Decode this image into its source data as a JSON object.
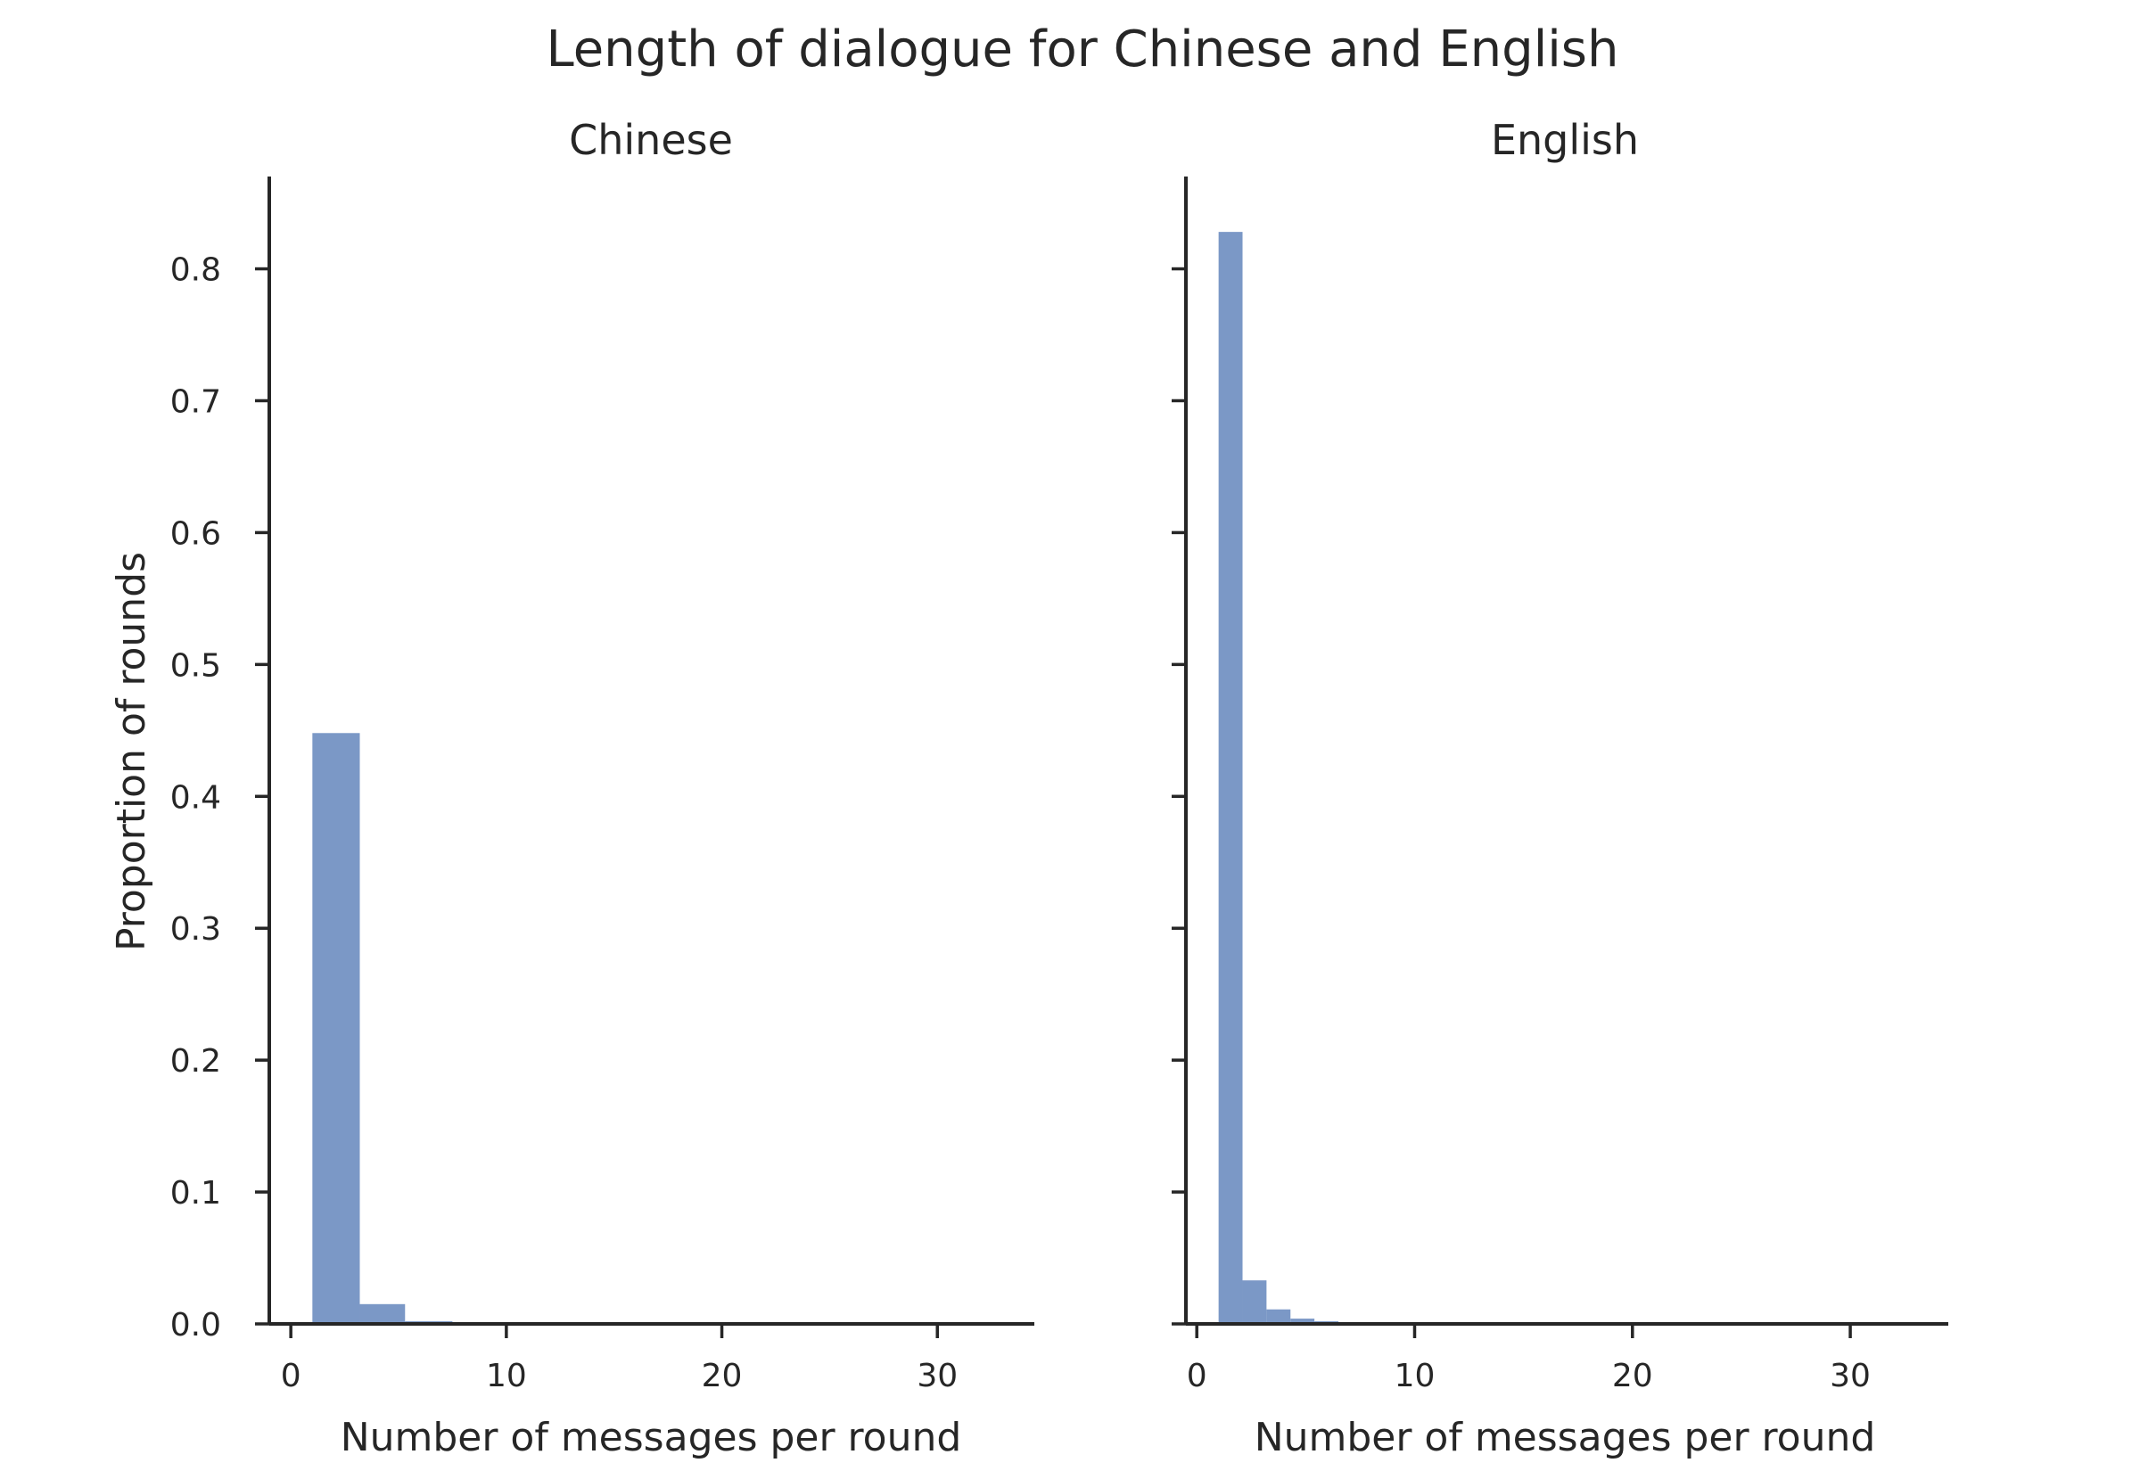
{
  "figure": {
    "title": "Length of dialogue for Chinese and English",
    "bar_color": "#7b98c6",
    "axis_color": "#262626"
  },
  "chart_data": [
    {
      "type": "bar",
      "panel": "Chinese",
      "title": "Chinese",
      "xlabel": "Number of messages per round",
      "ylabel": "Proportion of rounds",
      "xlim": [
        -1,
        34.5
      ],
      "ylim": [
        0,
        0.87
      ],
      "xticks": [
        0,
        10,
        20,
        30
      ],
      "yticks": [
        0.0,
        0.1,
        0.2,
        0.3,
        0.4,
        0.5,
        0.6,
        0.7,
        0.8
      ],
      "ytick_labels": [
        "0.0",
        "0.1",
        "0.2",
        "0.3",
        "0.4",
        "0.5",
        "0.6",
        "0.7",
        "0.8"
      ],
      "grid": false,
      "bins": [
        {
          "x0": 1.0,
          "x1": 3.2,
          "value": 0.448
        },
        {
          "x0": 3.2,
          "x1": 5.3,
          "value": 0.015
        },
        {
          "x0": 5.3,
          "x1": 7.5,
          "value": 0.002
        },
        {
          "x0": 7.5,
          "x1": 9.6,
          "value": 0.0005
        }
      ]
    },
    {
      "type": "bar",
      "panel": "English",
      "title": "English",
      "xlabel": "Number of messages per round",
      "ylabel": "",
      "xlim": [
        -0.5,
        34.5
      ],
      "ylim": [
        0,
        0.87
      ],
      "xticks": [
        0,
        10,
        20,
        30
      ],
      "yticks": [
        0.0,
        0.1,
        0.2,
        0.3,
        0.4,
        0.5,
        0.6,
        0.7,
        0.8
      ],
      "ytick_labels": [],
      "grid": false,
      "bins": [
        {
          "x0": 1.0,
          "x1": 2.1,
          "value": 0.828
        },
        {
          "x0": 2.1,
          "x1": 3.2,
          "value": 0.033
        },
        {
          "x0": 3.2,
          "x1": 4.3,
          "value": 0.011
        },
        {
          "x0": 4.3,
          "x1": 5.4,
          "value": 0.004
        },
        {
          "x0": 5.4,
          "x1": 6.5,
          "value": 0.002
        },
        {
          "x0": 6.5,
          "x1": 7.6,
          "value": 0.001
        }
      ]
    }
  ]
}
